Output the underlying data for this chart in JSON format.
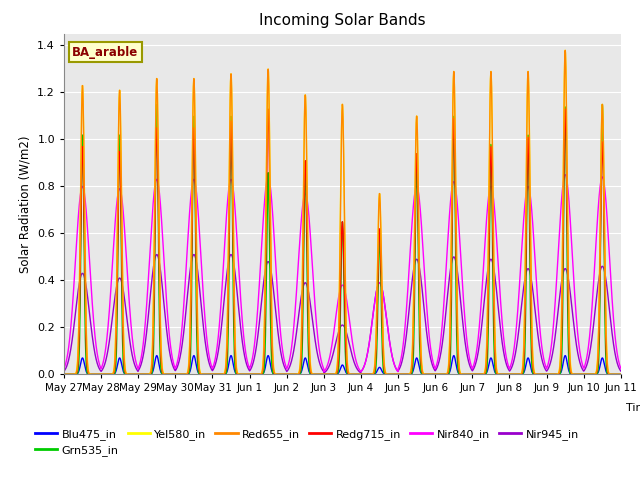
{
  "title": "Incoming Solar Bands",
  "xlabel": "Time",
  "ylabel": "Solar Radiation (W/m2)",
  "annotation": "BA_arable",
  "ylim": [
    0,
    1.45
  ],
  "yticks": [
    0.0,
    0.2,
    0.4,
    0.6,
    0.8,
    1.0,
    1.2,
    1.4
  ],
  "days": [
    "May 27",
    "May 28",
    "May 29",
    "May 30",
    "May 31",
    "Jun 1",
    "Jun 2",
    "Jun 3",
    "Jun 4",
    "Jun 5",
    "Jun 6",
    "Jun 7",
    "Jun 8",
    "Jun 9",
    "Jun 10",
    "Jun 11"
  ],
  "n_days": 15,
  "peaks_yel": [
    1.23,
    1.21,
    1.26,
    1.26,
    1.28,
    1.3,
    1.19,
    1.15,
    0.77,
    1.1,
    1.29,
    1.29,
    1.29,
    1.38,
    1.15
  ],
  "peaks_ora": [
    1.23,
    1.21,
    1.26,
    1.26,
    1.28,
    1.3,
    1.19,
    1.15,
    0.77,
    1.1,
    1.29,
    1.29,
    1.29,
    1.38,
    1.15
  ],
  "peaks_red": [
    0.97,
    0.95,
    1.05,
    1.05,
    1.08,
    1.13,
    0.91,
    0.65,
    0.62,
    0.94,
    1.09,
    0.97,
    1.01,
    1.13,
    0.99
  ],
  "peaks_grn": [
    1.02,
    1.02,
    1.15,
    1.1,
    1.1,
    0.86,
    0.91,
    0.65,
    0.6,
    0.94,
    1.1,
    0.98,
    1.02,
    1.14,
    1.15
  ],
  "peaks_mag": [
    0.8,
    0.79,
    0.83,
    0.83,
    0.83,
    0.84,
    0.77,
    0.38,
    0.39,
    0.8,
    0.82,
    0.8,
    0.8,
    0.85,
    0.84
  ],
  "peaks_pur": [
    0.43,
    0.41,
    0.51,
    0.51,
    0.51,
    0.48,
    0.39,
    0.21,
    0.39,
    0.49,
    0.5,
    0.49,
    0.45,
    0.45,
    0.46
  ],
  "peaks_blu": [
    0.07,
    0.07,
    0.08,
    0.08,
    0.08,
    0.08,
    0.07,
    0.04,
    0.03,
    0.07,
    0.08,
    0.07,
    0.07,
    0.08,
    0.07
  ],
  "color_yel": "#ffff00",
  "color_ora": "#ff8800",
  "color_red": "#ff0000",
  "color_grn": "#00cc00",
  "color_mag": "#ff00ff",
  "color_pur": "#9900cc",
  "color_blu": "#0000ff",
  "plot_bg": "#e8e8e8",
  "grid_color": "#ffffff"
}
